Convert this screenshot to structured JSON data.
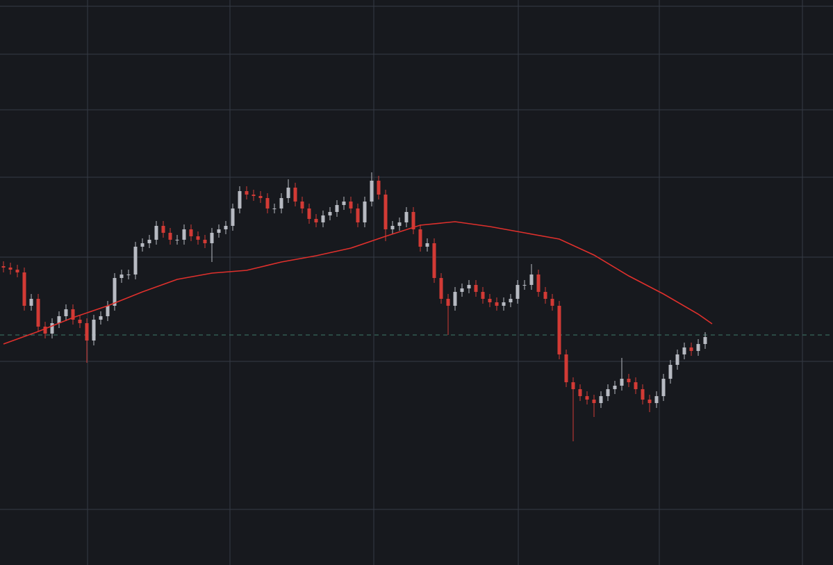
{
  "chart_data": {
    "type": "candlestick",
    "background": "#17191e",
    "grid": true,
    "grid_color": "#363a45",
    "up_color": "#b7bac2",
    "down_color": "#d23a35",
    "xlim": [
      -0.5,
      119.4
    ],
    "ylim": [
      0,
      813
    ],
    "xticks": [
      12.1,
      32.6,
      53.3,
      74.1,
      94.4,
      115
    ],
    "yticks": [
      80,
      293,
      443,
      558,
      655,
      735,
      804
    ],
    "open": [
      430,
      428,
      425,
      421,
      373,
      383,
      343,
      333,
      348,
      358,
      368,
      353,
      348,
      323,
      353,
      358,
      373,
      413,
      418,
      418,
      458,
      463,
      468,
      488,
      478,
      468,
      468,
      483,
      473,
      468,
      463,
      478,
      483,
      488,
      513,
      538,
      533,
      531,
      528,
      513,
      513,
      528,
      543,
      523,
      513,
      498,
      493,
      503,
      508,
      518,
      523,
      513,
      493,
      523,
      553,
      533,
      483,
      488,
      493,
      508,
      483,
      458,
      463,
      413,
      383,
      373,
      393,
      398,
      403,
      393,
      383,
      378,
      373,
      378,
      383,
      403,
      403,
      418,
      393,
      383,
      373,
      303,
      263,
      253,
      243,
      238,
      233,
      243,
      253,
      258,
      268,
      263,
      253,
      238,
      233,
      243,
      268,
      288,
      303,
      313,
      308,
      318
    ],
    "high": [
      437,
      435,
      432,
      428,
      390,
      390,
      350,
      355,
      365,
      375,
      375,
      360,
      355,
      360,
      365,
      380,
      420,
      425,
      425,
      465,
      470,
      475,
      495,
      495,
      485,
      475,
      490,
      490,
      480,
      475,
      485,
      490,
      495,
      520,
      545,
      545,
      540,
      538,
      535,
      520,
      535,
      555,
      550,
      530,
      520,
      505,
      510,
      515,
      525,
      530,
      530,
      520,
      530,
      565,
      560,
      540,
      495,
      500,
      515,
      515,
      490,
      470,
      470,
      420,
      390,
      400,
      405,
      410,
      410,
      400,
      390,
      385,
      385,
      390,
      410,
      410,
      433,
      425,
      400,
      390,
      380,
      310,
      270,
      260,
      250,
      245,
      250,
      260,
      265,
      298,
      275,
      270,
      260,
      245,
      250,
      275,
      295,
      310,
      320,
      320,
      325,
      335
    ],
    "low": [
      421,
      418,
      414,
      366,
      366,
      336,
      326,
      326,
      341,
      351,
      346,
      341,
      291,
      316,
      346,
      351,
      366,
      406,
      411,
      411,
      451,
      456,
      461,
      471,
      461,
      461,
      461,
      466,
      461,
      456,
      436,
      471,
      476,
      481,
      506,
      526,
      524,
      521,
      506,
      506,
      506,
      521,
      516,
      506,
      491,
      486,
      486,
      496,
      501,
      511,
      506,
      486,
      486,
      516,
      526,
      466,
      476,
      481,
      486,
      476,
      451,
      451,
      406,
      376,
      331,
      366,
      386,
      391,
      386,
      376,
      371,
      366,
      366,
      371,
      376,
      396,
      396,
      386,
      376,
      366,
      296,
      256,
      178,
      236,
      231,
      213,
      226,
      236,
      246,
      251,
      256,
      246,
      231,
      220,
      226,
      236,
      261,
      281,
      296,
      301,
      301,
      311
    ],
    "close": [
      428,
      425,
      421,
      373,
      383,
      343,
      333,
      348,
      358,
      368,
      353,
      348,
      323,
      353,
      358,
      373,
      413,
      418,
      418,
      458,
      463,
      468,
      488,
      478,
      468,
      468,
      483,
      473,
      468,
      463,
      478,
      483,
      488,
      513,
      538,
      533,
      531,
      528,
      513,
      513,
      528,
      543,
      523,
      513,
      498,
      493,
      503,
      508,
      518,
      523,
      513,
      493,
      523,
      553,
      533,
      483,
      488,
      493,
      508,
      483,
      458,
      463,
      413,
      383,
      373,
      393,
      398,
      403,
      393,
      383,
      378,
      373,
      378,
      383,
      403,
      403,
      418,
      393,
      383,
      373,
      303,
      263,
      253,
      243,
      238,
      233,
      243,
      253,
      258,
      268,
      263,
      253,
      238,
      233,
      243,
      268,
      288,
      303,
      313,
      308,
      318,
      328
    ],
    "moving_average": {
      "color": "#e0302c",
      "x": [
        0,
        5,
        10,
        15,
        20,
        25,
        30,
        35,
        40,
        45,
        50,
        55,
        60,
        65,
        70,
        75,
        80,
        85,
        90,
        95,
        100,
        102
      ],
      "values": [
        318,
        336,
        356,
        373,
        393,
        411,
        420,
        424,
        436,
        445,
        456,
        473,
        489,
        494,
        487,
        478,
        469,
        446,
        416,
        390,
        361,
        347
      ]
    },
    "last_price_line": {
      "value": 331,
      "color": "#3f7a6c"
    }
  }
}
